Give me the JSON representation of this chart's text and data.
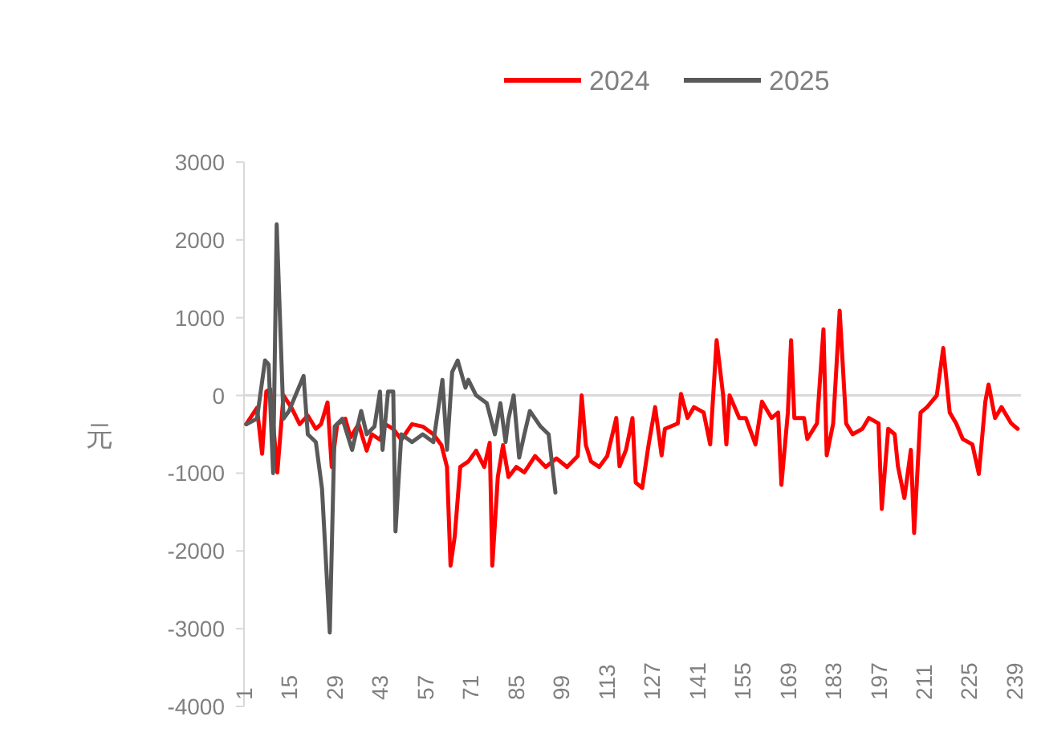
{
  "chart_data": {
    "type": "line",
    "ylabel": "元",
    "legend": "top",
    "xlim": [
      1,
      241
    ],
    "ylim": [
      -4000,
      3000
    ],
    "xticks": [
      1,
      15,
      29,
      43,
      57,
      71,
      85,
      99,
      113,
      127,
      141,
      155,
      169,
      183,
      197,
      211,
      225,
      239
    ],
    "yticks": [
      -4000,
      -3000,
      -2000,
      -1000,
      0,
      1000,
      2000,
      3000
    ],
    "series": [
      {
        "name": "2024",
        "color": "#ff0000",
        "x": [
          1.7,
          5,
          6.6,
          7.9,
          9.1,
          11.3,
          13.2,
          15.7,
          18.2,
          20.7,
          23.2,
          24.8,
          26.8,
          28.1,
          29.8,
          32.3,
          33.9,
          36.4,
          38.9,
          40.5,
          43,
          44.6,
          47.1,
          49.6,
          52.9,
          56.2,
          59.5,
          62,
          63.7,
          64.8,
          66.1,
          67.8,
          70.3,
          72.7,
          75.2,
          76.9,
          77.7,
          79.4,
          81,
          82.7,
          85.1,
          87.6,
          90.9,
          94.2,
          97.5,
          100.8,
          104.1,
          105.3,
          106.6,
          108.2,
          110.7,
          113.2,
          116,
          117,
          119,
          121,
          122,
          124,
          126,
          128,
          130,
          131,
          135,
          136,
          138,
          140,
          143,
          145,
          147,
          149,
          150,
          151,
          154,
          156,
          159,
          161,
          164,
          166,
          167,
          169,
          170,
          171,
          174,
          175,
          178,
          180,
          181,
          183,
          185,
          187,
          189,
          192,
          194,
          197,
          198,
          200,
          202,
          203,
          205,
          207,
          208,
          210,
          212,
          215,
          217,
          219,
          221,
          223,
          226,
          228,
          230,
          231,
          233,
          235,
          238,
          240
        ],
        "values": [
          -370,
          -160,
          -750,
          50,
          80,
          -990,
          0,
          -160,
          -370,
          -260,
          -430,
          -370,
          -90,
          -920,
          -370,
          -300,
          -540,
          -370,
          -710,
          -500,
          -570,
          -370,
          -430,
          -570,
          -370,
          -400,
          -500,
          -640,
          -920,
          -2190,
          -1810,
          -920,
          -850,
          -710,
          -920,
          -610,
          -2190,
          -1050,
          -640,
          -1050,
          -920,
          -990,
          -780,
          -920,
          -810,
          -920,
          -780,
          0,
          -640,
          -850,
          -920,
          -780,
          -290,
          -910,
          -700,
          -290,
          -1120,
          -1190,
          -630,
          -150,
          -770,
          -430,
          -360,
          20,
          -290,
          -150,
          -220,
          -630,
          710,
          0,
          -630,
          0,
          -290,
          -290,
          -630,
          -80,
          -290,
          -220,
          -1150,
          -220,
          710,
          -290,
          -290,
          -560,
          -360,
          850,
          -770,
          -360,
          1090,
          -360,
          -500,
          -430,
          -290,
          -360,
          -1460,
          -430,
          -500,
          -910,
          -1320,
          -700,
          -1770,
          -220,
          -150,
          0,
          610,
          -220,
          -360,
          -560,
          -630,
          -1010,
          -80,
          140,
          -290,
          -150,
          -360,
          -430
        ]
      },
      {
        "name": "2025",
        "color": "#595959",
        "x": [
          1.7,
          5,
          7.5,
          8.6,
          10,
          11.1,
          13.2,
          14.9,
          19.4,
          20.7,
          23.2,
          25.1,
          27.5,
          29,
          31.4,
          34.4,
          37.2,
          38.9,
          41.3,
          43,
          43.8,
          45.5,
          47.1,
          47.8,
          49.6,
          52.9,
          56.2,
          59.5,
          62.3,
          63.7,
          65.3,
          67,
          69.4,
          70.3,
          72.7,
          76,
          78.5,
          80.2,
          81.8,
          82.7,
          84.3,
          86,
          87.6,
          89.3,
          92.6,
          95.1,
          97.2
        ],
        "values": [
          -370,
          -300,
          450,
          400,
          -1000,
          2200,
          -300,
          -200,
          250,
          -500,
          -600,
          -1200,
          -3050,
          -400,
          -300,
          -700,
          -200,
          -500,
          -400,
          50,
          -700,
          50,
          50,
          -1750,
          -500,
          -600,
          -500,
          -600,
          200,
          -700,
          300,
          450,
          100,
          200,
          0,
          -100,
          -500,
          -100,
          -600,
          -300,
          0,
          -800,
          -500,
          -200,
          -400,
          -500,
          -1250
        ]
      }
    ]
  }
}
